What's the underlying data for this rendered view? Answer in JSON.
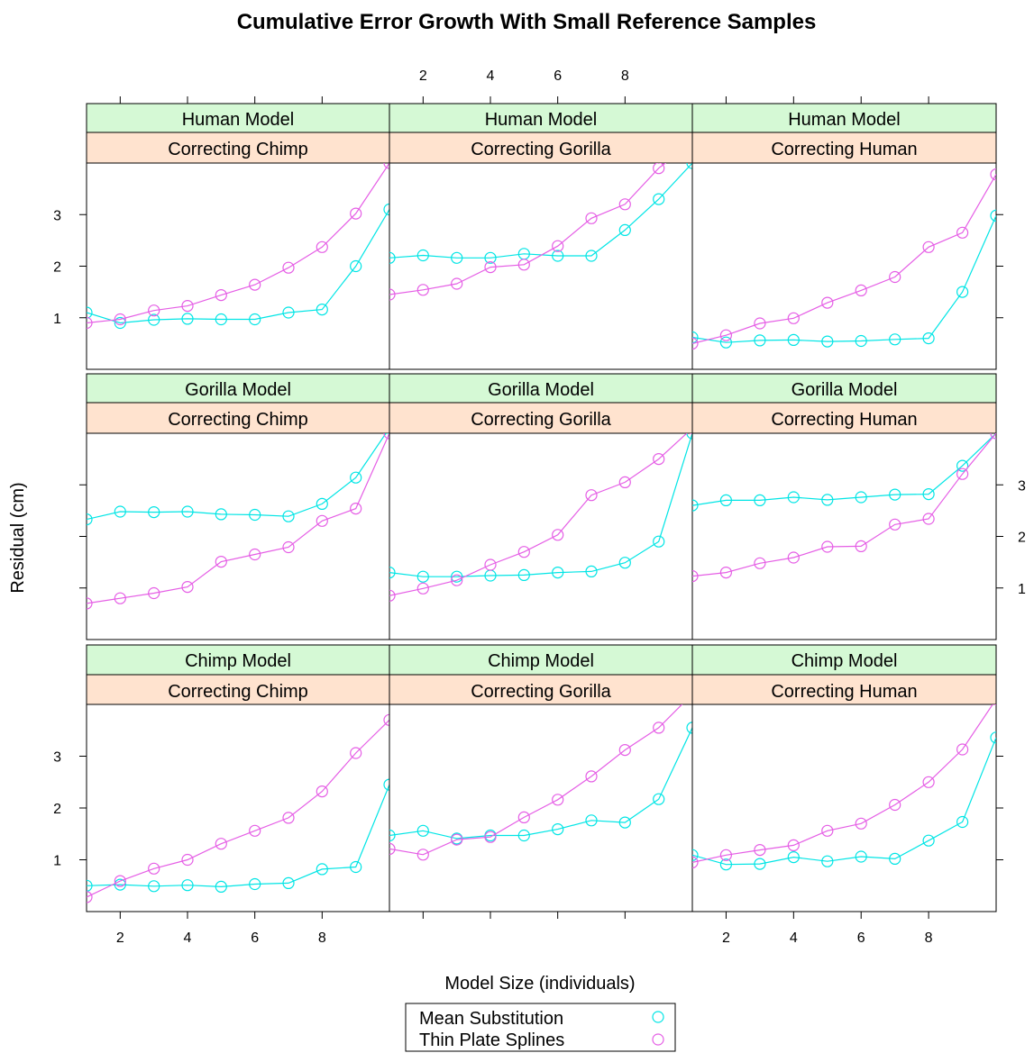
{
  "colors": {
    "mean": "#00e5e5",
    "tps": "#e55ee5",
    "strip_model": "#d5f9d5",
    "strip_correcting": "#ffe3cf"
  },
  "chart_data": {
    "type": "scatter",
    "title": "Cumulative Error Growth With Small Reference Samples",
    "xlabel": "Model Size (individuals)",
    "ylabel": "Residual (cm)",
    "xlim": [
      1,
      10
    ],
    "ylim": [
      0,
      4
    ],
    "x_ticks": [
      "2",
      "4",
      "6",
      "8"
    ],
    "y_ticks": [
      "1",
      "2",
      "3"
    ],
    "legend": [
      {
        "key": "mean",
        "label": "Mean Substitution"
      },
      {
        "key": "tps",
        "label": "Thin Plate Splines"
      }
    ],
    "panels": [
      {
        "model": "Human Model",
        "correcting": "Correcting Chimp",
        "mean": [
          [
            1,
            1.1
          ],
          [
            2,
            0.9
          ],
          [
            3,
            0.96
          ],
          [
            4,
            0.98
          ],
          [
            5,
            0.97
          ],
          [
            6,
            0.97
          ],
          [
            7,
            1.1
          ],
          [
            8,
            1.16
          ],
          [
            9,
            2.0
          ],
          [
            10,
            3.1
          ]
        ],
        "tps": [
          [
            1,
            0.9
          ],
          [
            2,
            0.97
          ],
          [
            3,
            1.14
          ],
          [
            4,
            1.23
          ],
          [
            5,
            1.44
          ],
          [
            6,
            1.64
          ],
          [
            7,
            1.97
          ],
          [
            8,
            2.37
          ],
          [
            9,
            3.02
          ],
          [
            10,
            4.0
          ]
        ]
      },
      {
        "model": "Human Model",
        "correcting": "Correcting Gorilla",
        "mean": [
          [
            1,
            2.16
          ],
          [
            2,
            2.21
          ],
          [
            3,
            2.16
          ],
          [
            4,
            2.16
          ],
          [
            5,
            2.24
          ],
          [
            6,
            2.2
          ],
          [
            7,
            2.2
          ],
          [
            8,
            2.7
          ],
          [
            9,
            3.3
          ],
          [
            10,
            4.0
          ]
        ],
        "tps": [
          [
            1,
            1.45
          ],
          [
            2,
            1.54
          ],
          [
            3,
            1.66
          ],
          [
            4,
            1.98
          ],
          [
            5,
            2.03
          ],
          [
            6,
            2.39
          ],
          [
            7,
            2.93
          ],
          [
            8,
            3.2
          ],
          [
            9,
            3.9
          ],
          [
            10,
            4.4
          ]
        ]
      },
      {
        "model": "Human Model",
        "correcting": "Correcting Human",
        "mean": [
          [
            1,
            0.62
          ],
          [
            2,
            0.52
          ],
          [
            3,
            0.56
          ],
          [
            4,
            0.57
          ],
          [
            5,
            0.54
          ],
          [
            6,
            0.55
          ],
          [
            7,
            0.58
          ],
          [
            8,
            0.6
          ],
          [
            9,
            1.5
          ],
          [
            10,
            2.98
          ]
        ],
        "tps": [
          [
            1,
            0.5
          ],
          [
            2,
            0.66
          ],
          [
            3,
            0.89
          ],
          [
            4,
            0.99
          ],
          [
            5,
            1.29
          ],
          [
            6,
            1.53
          ],
          [
            7,
            1.79
          ],
          [
            8,
            2.37
          ],
          [
            9,
            2.65
          ],
          [
            10,
            3.78
          ]
        ]
      },
      {
        "model": "Gorilla Model",
        "correcting": "Correcting Chimp",
        "mean": [
          [
            1,
            2.33
          ],
          [
            2,
            2.48
          ],
          [
            3,
            2.47
          ],
          [
            4,
            2.48
          ],
          [
            5,
            2.43
          ],
          [
            6,
            2.42
          ],
          [
            7,
            2.39
          ],
          [
            8,
            2.63
          ],
          [
            9,
            3.14
          ],
          [
            10,
            4.1
          ]
        ],
        "tps": [
          [
            1,
            0.7
          ],
          [
            2,
            0.8
          ],
          [
            3,
            0.9
          ],
          [
            4,
            1.02
          ],
          [
            5,
            1.51
          ],
          [
            6,
            1.65
          ],
          [
            7,
            1.79
          ],
          [
            8,
            2.3
          ],
          [
            9,
            2.54
          ],
          [
            10,
            4.0
          ]
        ]
      },
      {
        "model": "Gorilla Model",
        "correcting": "Correcting Gorilla",
        "mean": [
          [
            1,
            1.3
          ],
          [
            2,
            1.22
          ],
          [
            3,
            1.22
          ],
          [
            4,
            1.24
          ],
          [
            5,
            1.25
          ],
          [
            6,
            1.3
          ],
          [
            7,
            1.32
          ],
          [
            8,
            1.49
          ],
          [
            9,
            1.9
          ],
          [
            10,
            4.0
          ]
        ],
        "tps": [
          [
            1,
            0.85
          ],
          [
            2,
            0.99
          ],
          [
            3,
            1.15
          ],
          [
            4,
            1.45
          ],
          [
            5,
            1.7
          ],
          [
            6,
            2.03
          ],
          [
            7,
            2.8
          ],
          [
            8,
            3.05
          ],
          [
            9,
            3.5
          ],
          [
            10,
            4.1
          ]
        ]
      },
      {
        "model": "Gorilla Model",
        "correcting": "Correcting Human",
        "mean": [
          [
            1,
            2.6
          ],
          [
            2,
            2.7
          ],
          [
            3,
            2.7
          ],
          [
            4,
            2.76
          ],
          [
            5,
            2.71
          ],
          [
            6,
            2.76
          ],
          [
            7,
            2.81
          ],
          [
            8,
            2.82
          ],
          [
            9,
            3.37
          ],
          [
            10,
            4.0
          ]
        ],
        "tps": [
          [
            1,
            1.23
          ],
          [
            2,
            1.3
          ],
          [
            3,
            1.48
          ],
          [
            4,
            1.59
          ],
          [
            5,
            1.8
          ],
          [
            6,
            1.81
          ],
          [
            7,
            2.23
          ],
          [
            8,
            2.34
          ],
          [
            9,
            3.21
          ],
          [
            10,
            4.0
          ]
        ]
      },
      {
        "model": "Chimp Model",
        "correcting": "Correcting Chimp",
        "mean": [
          [
            1,
            0.5
          ],
          [
            2,
            0.52
          ],
          [
            3,
            0.49
          ],
          [
            4,
            0.51
          ],
          [
            5,
            0.48
          ],
          [
            6,
            0.53
          ],
          [
            7,
            0.55
          ],
          [
            8,
            0.82
          ],
          [
            9,
            0.86
          ],
          [
            10,
            2.45
          ]
        ],
        "tps": [
          [
            1,
            0.28
          ],
          [
            2,
            0.59
          ],
          [
            3,
            0.83
          ],
          [
            4,
            1.0
          ],
          [
            5,
            1.31
          ],
          [
            6,
            1.56
          ],
          [
            7,
            1.81
          ],
          [
            8,
            2.32
          ],
          [
            9,
            3.06
          ],
          [
            10,
            3.7
          ]
        ]
      },
      {
        "model": "Chimp Model",
        "correcting": "Correcting Gorilla",
        "mean": [
          [
            1,
            1.47
          ],
          [
            2,
            1.56
          ],
          [
            3,
            1.41
          ],
          [
            4,
            1.47
          ],
          [
            5,
            1.47
          ],
          [
            6,
            1.59
          ],
          [
            7,
            1.76
          ],
          [
            8,
            1.72
          ],
          [
            9,
            2.17
          ],
          [
            10,
            3.55
          ]
        ],
        "tps": [
          [
            1,
            1.21
          ],
          [
            2,
            1.1
          ],
          [
            3,
            1.39
          ],
          [
            4,
            1.44
          ],
          [
            5,
            1.82
          ],
          [
            6,
            2.16
          ],
          [
            7,
            2.61
          ],
          [
            8,
            3.12
          ],
          [
            9,
            3.55
          ],
          [
            10,
            4.2
          ]
        ]
      },
      {
        "model": "Chimp Model",
        "correcting": "Correcting Human",
        "mean": [
          [
            1,
            1.09
          ],
          [
            2,
            0.91
          ],
          [
            3,
            0.92
          ],
          [
            4,
            1.05
          ],
          [
            5,
            0.97
          ],
          [
            6,
            1.06
          ],
          [
            7,
            1.02
          ],
          [
            8,
            1.37
          ],
          [
            9,
            1.73
          ],
          [
            10,
            3.36
          ]
        ],
        "tps": [
          [
            1,
            0.95
          ],
          [
            2,
            1.09
          ],
          [
            3,
            1.19
          ],
          [
            4,
            1.28
          ],
          [
            5,
            1.56
          ],
          [
            6,
            1.7
          ],
          [
            7,
            2.06
          ],
          [
            8,
            2.5
          ],
          [
            9,
            3.13
          ],
          [
            10,
            4.1
          ]
        ]
      }
    ]
  }
}
